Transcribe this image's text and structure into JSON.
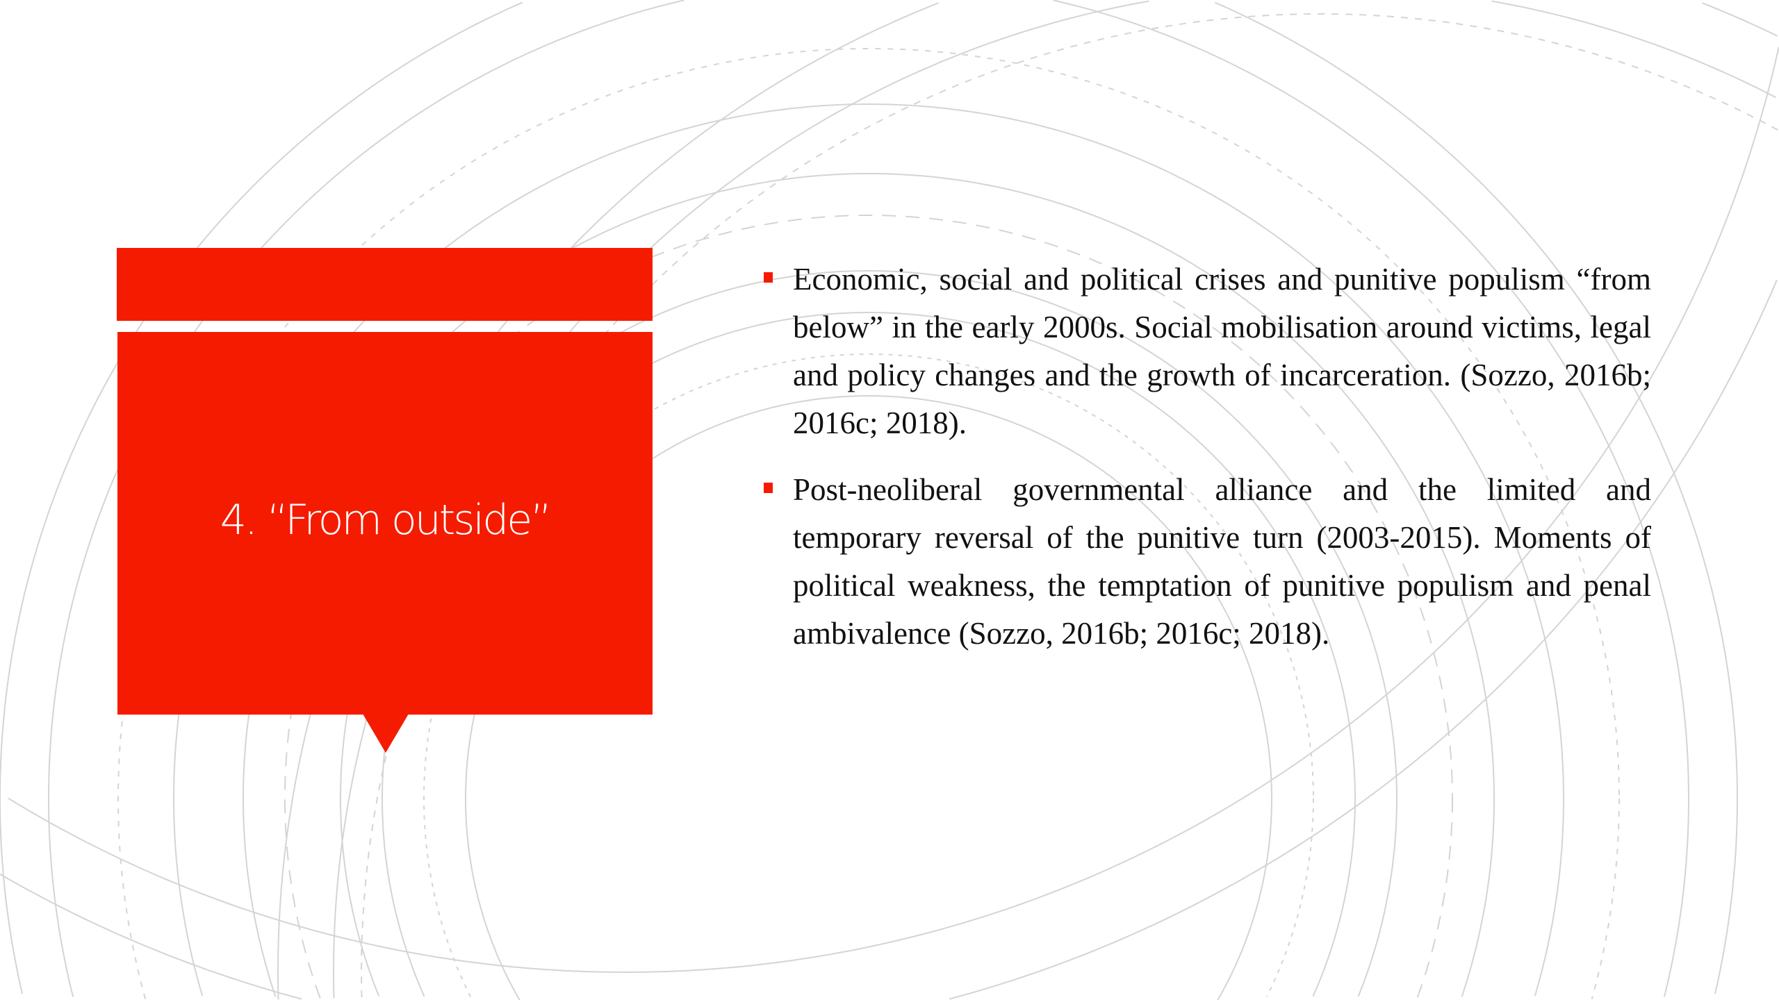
{
  "colors": {
    "accent": "#f51b00",
    "arc": "#d4d4d4"
  },
  "slide": {
    "title": "4. “From outside”",
    "bullets": [
      "Economic, social and political crises and punitive populism “from below” in the early 2000s. Social mobilisation around victims, legal and policy changes and the growth of incarceration. (Sozzo, 2016b; 2016c; 2018).",
      "Post-neoliberal governmental alliance and the limited and temporary reversal of the punitive turn (2003-2015). Moments of political weakness, the temptation of punitive populism and penal ambivalence (Sozzo, 2016b; 2016c; 2018)."
    ]
  }
}
